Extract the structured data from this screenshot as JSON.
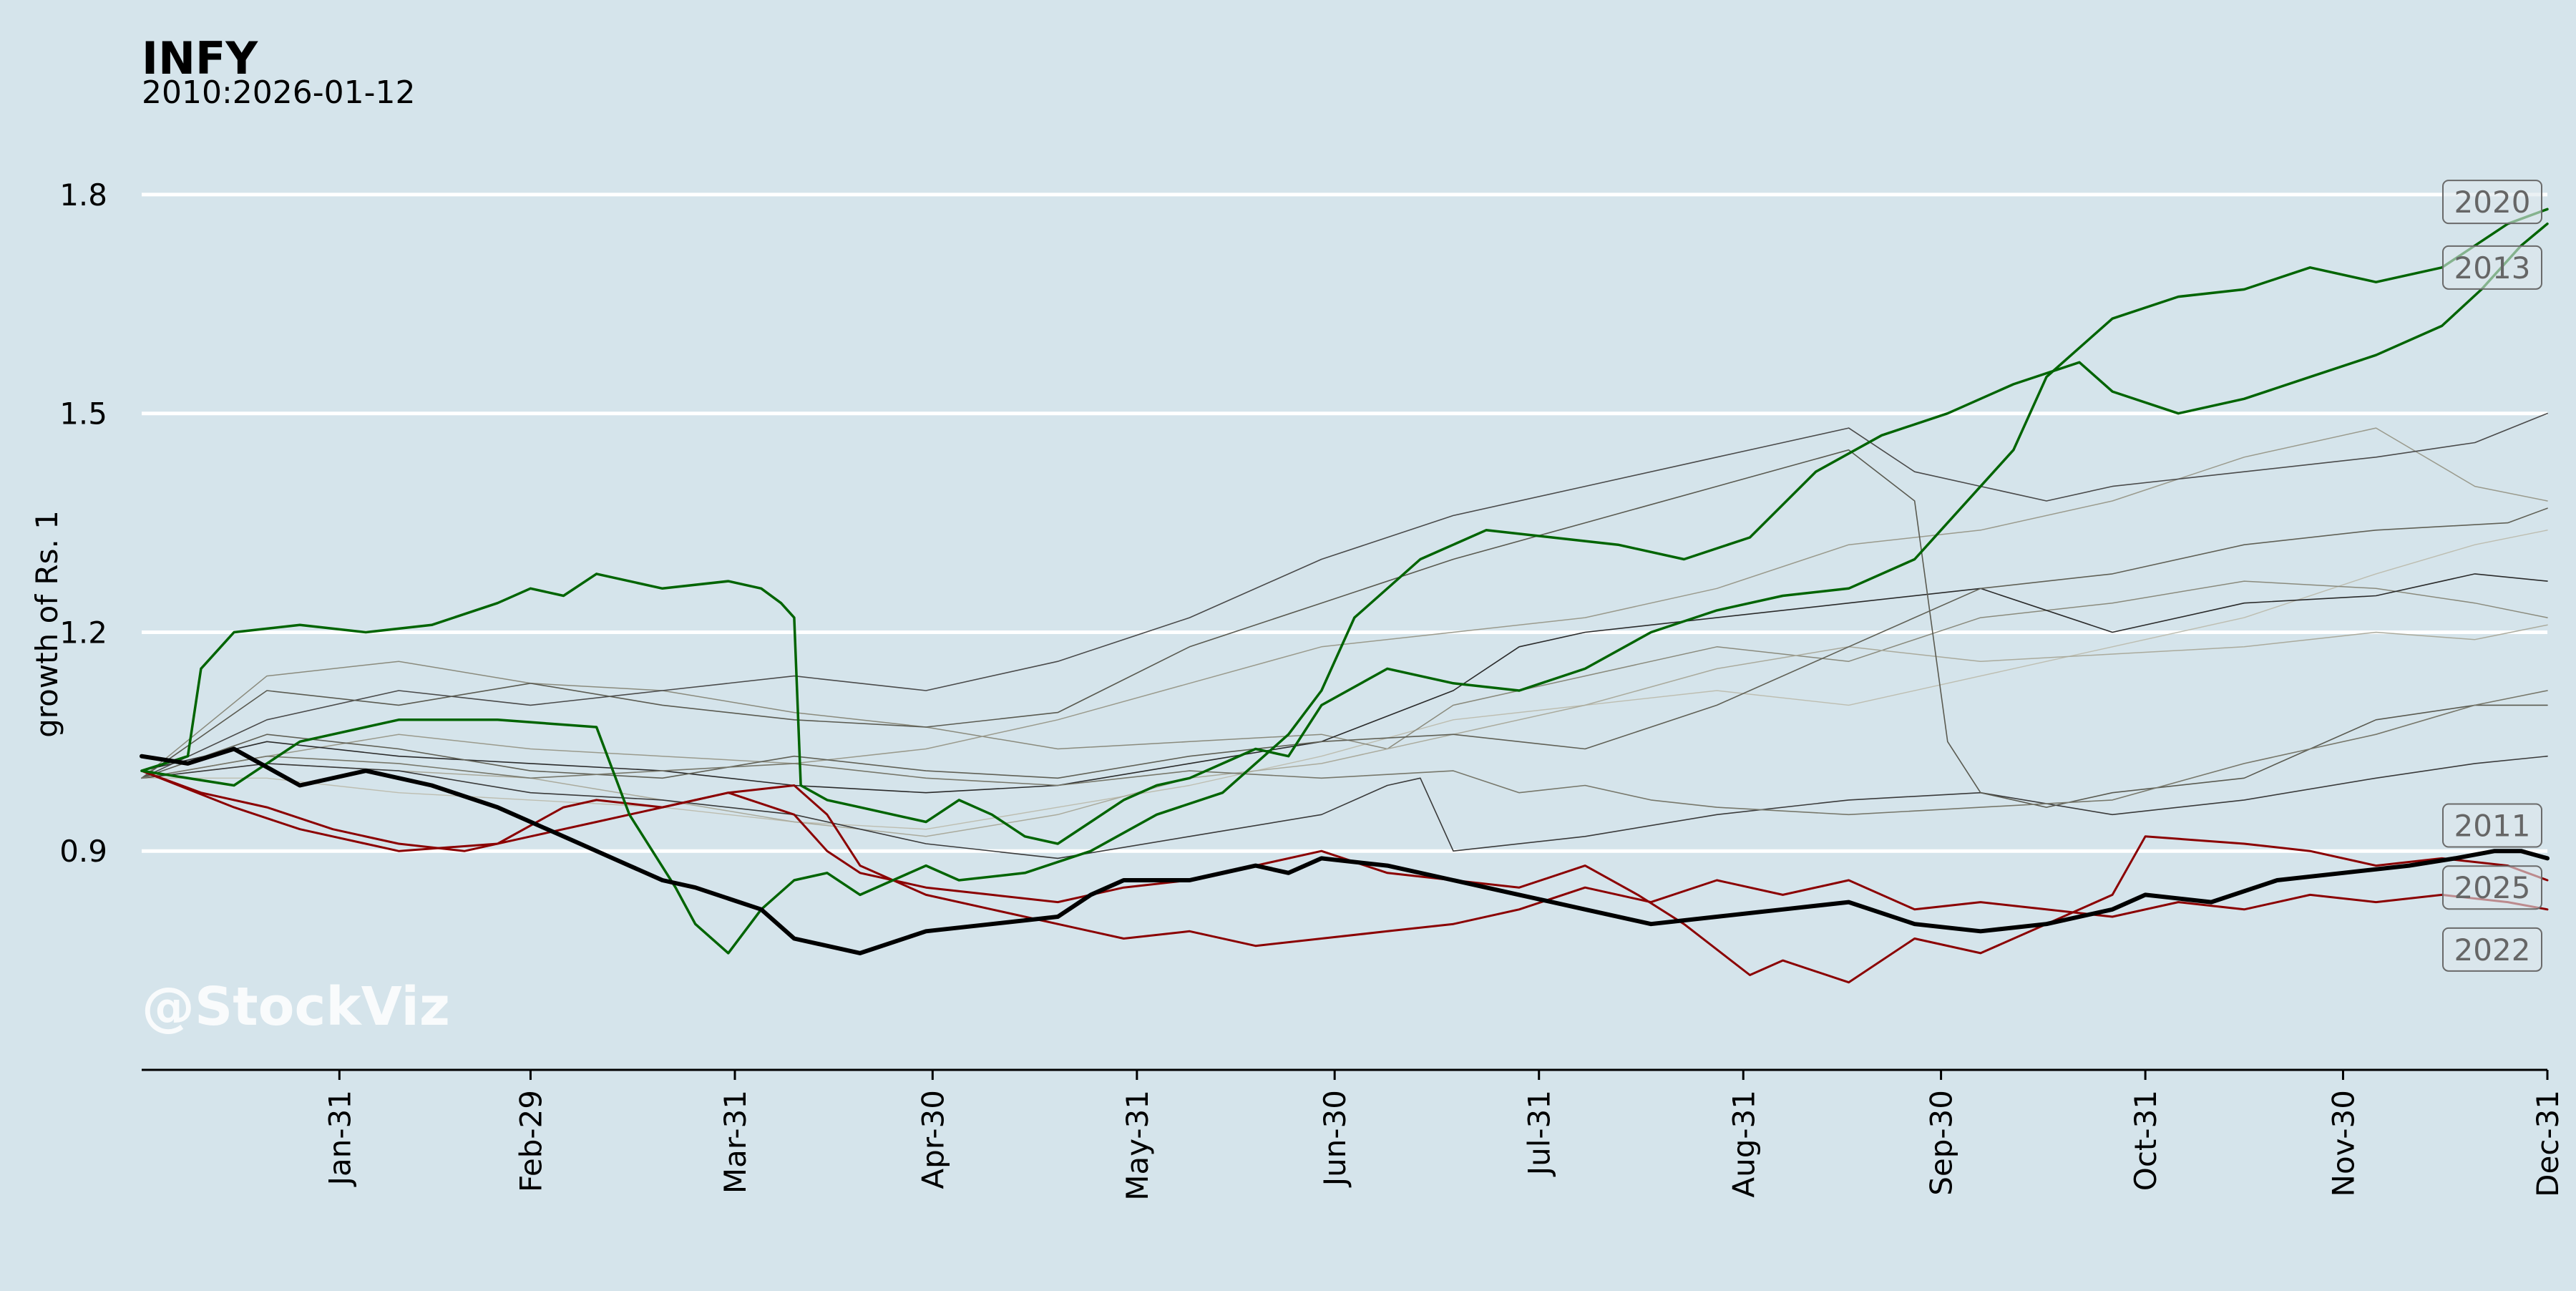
{
  "chart_data": {
    "type": "line",
    "title": "INFY",
    "subtitle": "2010:2026-01-12",
    "ylabel": "growth of Rs. 1",
    "xlabel": "",
    "watermark": "@StockViz",
    "ylim": [
      0.6,
      1.9
    ],
    "xlim": [
      1,
      366
    ],
    "yticks": [
      0.9,
      1.2,
      1.5,
      1.8
    ],
    "ytick_labels": [
      "0.9",
      "1.2",
      "1.5",
      "1.8"
    ],
    "xticks": [
      31,
      60,
      91,
      121,
      152,
      182,
      213,
      244,
      274,
      305,
      335,
      366
    ],
    "xtick_labels": [
      "Jan-31",
      "Feb-29",
      "Mar-31",
      "Apr-30",
      "May-31",
      "Jun-30",
      "Jul-31",
      "Aug-31",
      "Sep-30",
      "Oct-31",
      "Nov-30",
      "Dec-31"
    ],
    "grid": "horizontal",
    "colors": {
      "background": "#d5e4eb",
      "grid": "#ffffff",
      "up_highlight": "#006400",
      "down_highlight": "#8b0000",
      "current": "#000000"
    },
    "series": [
      {
        "name": "2020",
        "label": "2020",
        "color": "#006400",
        "width": 3.5,
        "x": [
          1,
          15,
          25,
          40,
          55,
          70,
          75,
          82,
          85,
          90,
          95,
          100,
          105,
          110,
          115,
          120,
          125,
          135,
          145,
          155,
          165,
          170,
          175,
          180,
          185,
          195,
          205,
          215,
          225,
          235,
          245,
          255,
          265,
          275,
          285,
          295,
          300,
          310,
          320,
          330,
          340,
          350,
          356,
          362,
          366
        ],
        "y": [
          1.01,
          0.99,
          1.05,
          1.08,
          1.08,
          1.07,
          0.95,
          0.85,
          0.8,
          0.76,
          0.82,
          0.86,
          0.87,
          0.84,
          0.86,
          0.88,
          0.86,
          0.87,
          0.9,
          0.95,
          0.98,
          1.02,
          1.06,
          1.12,
          1.22,
          1.3,
          1.34,
          1.33,
          1.32,
          1.3,
          1.33,
          1.42,
          1.47,
          1.5,
          1.54,
          1.57,
          1.53,
          1.5,
          1.52,
          1.55,
          1.58,
          1.62,
          1.67,
          1.73,
          1.76
        ]
      },
      {
        "name": "2013",
        "label": "2013",
        "color": "#006400",
        "width": 3.5,
        "x": [
          1,
          8,
          10,
          15,
          25,
          35,
          45,
          55,
          60,
          65,
          70,
          80,
          90,
          95,
          98,
          100,
          101,
          105,
          110,
          115,
          120,
          125,
          130,
          135,
          140,
          145,
          150,
          155,
          160,
          165,
          170,
          175,
          180,
          190,
          200,
          210,
          220,
          230,
          240,
          250,
          260,
          270,
          280,
          285,
          290,
          300,
          310,
          320,
          330,
          340,
          350,
          360,
          366
        ],
        "y": [
          1.01,
          1.03,
          1.15,
          1.2,
          1.21,
          1.2,
          1.21,
          1.24,
          1.26,
          1.25,
          1.28,
          1.26,
          1.27,
          1.26,
          1.24,
          1.22,
          0.99,
          0.97,
          0.96,
          0.95,
          0.94,
          0.97,
          0.95,
          0.92,
          0.91,
          0.94,
          0.97,
          0.99,
          1.0,
          1.02,
          1.04,
          1.03,
          1.1,
          1.15,
          1.13,
          1.12,
          1.15,
          1.2,
          1.23,
          1.25,
          1.26,
          1.3,
          1.4,
          1.45,
          1.55,
          1.63,
          1.66,
          1.67,
          1.7,
          1.68,
          1.7,
          1.76,
          1.78
        ]
      },
      {
        "name": "2011",
        "label": "2011",
        "color": "#8b0000",
        "width": 3,
        "x": [
          1,
          15,
          25,
          40,
          55,
          65,
          70,
          80,
          90,
          100,
          105,
          110,
          120,
          130,
          140,
          150,
          160,
          170,
          180,
          190,
          200,
          210,
          220,
          228,
          235,
          245,
          250,
          260,
          270,
          280,
          290,
          300,
          305,
          320,
          330,
          340,
          350,
          360,
          366
        ],
        "y": [
          1.01,
          0.96,
          0.93,
          0.9,
          0.91,
          0.96,
          0.97,
          0.96,
          0.98,
          0.95,
          0.9,
          0.87,
          0.85,
          0.84,
          0.83,
          0.85,
          0.86,
          0.88,
          0.9,
          0.87,
          0.86,
          0.85,
          0.88,
          0.84,
          0.8,
          0.73,
          0.75,
          0.72,
          0.78,
          0.76,
          0.8,
          0.84,
          0.92,
          0.91,
          0.9,
          0.88,
          0.89,
          0.88,
          0.86
        ]
      },
      {
        "name": "2022",
        "label": "2022",
        "color": "#8b0000",
        "width": 3,
        "x": [
          1,
          10,
          20,
          30,
          40,
          50,
          60,
          70,
          80,
          90,
          100,
          105,
          110,
          120,
          130,
          140,
          150,
          160,
          170,
          180,
          190,
          200,
          210,
          220,
          230,
          240,
          250,
          260,
          270,
          280,
          290,
          300,
          310,
          320,
          330,
          340,
          350,
          360,
          366
        ],
        "y": [
          1.01,
          0.98,
          0.96,
          0.93,
          0.91,
          0.9,
          0.92,
          0.94,
          0.96,
          0.98,
          0.99,
          0.95,
          0.88,
          0.84,
          0.82,
          0.8,
          0.78,
          0.79,
          0.77,
          0.78,
          0.79,
          0.8,
          0.82,
          0.85,
          0.83,
          0.86,
          0.84,
          0.86,
          0.82,
          0.83,
          0.82,
          0.81,
          0.83,
          0.82,
          0.84,
          0.83,
          0.84,
          0.83,
          0.82
        ]
      },
      {
        "name": "2025",
        "label": "2025",
        "color": "#000000",
        "width": 6,
        "x": [
          1,
          8,
          15,
          25,
          35,
          45,
          55,
          65,
          75,
          80,
          85,
          95,
          100,
          110,
          120,
          130,
          140,
          145,
          150,
          160,
          170,
          175,
          180,
          190,
          200,
          210,
          220,
          230,
          240,
          250,
          260,
          270,
          280,
          290,
          300,
          305,
          315,
          325,
          335,
          345,
          352,
          358,
          362,
          366
        ],
        "y": [
          1.03,
          1.02,
          1.04,
          0.99,
          1.01,
          0.99,
          0.96,
          0.92,
          0.88,
          0.86,
          0.85,
          0.82,
          0.78,
          0.76,
          0.79,
          0.8,
          0.81,
          0.84,
          0.86,
          0.86,
          0.88,
          0.87,
          0.89,
          0.88,
          0.86,
          0.84,
          0.82,
          0.8,
          0.81,
          0.82,
          0.83,
          0.8,
          0.79,
          0.8,
          0.82,
          0.84,
          0.83,
          0.86,
          0.87,
          0.88,
          0.89,
          0.9,
          0.9,
          0.89
        ]
      },
      {
        "name": "gray-1",
        "color": "#2a2a2a",
        "width": 1.6,
        "x": [
          1,
          20,
          40,
          60,
          80,
          100,
          120,
          140,
          160,
          180,
          200,
          210,
          220,
          240,
          260,
          280,
          300,
          320,
          340,
          355,
          366
        ],
        "y": [
          1.01,
          1.05,
          1.03,
          1.02,
          1.01,
          0.99,
          0.98,
          0.99,
          1.02,
          1.05,
          1.12,
          1.18,
          1.2,
          1.22,
          1.24,
          1.26,
          1.2,
          1.24,
          1.25,
          1.28,
          1.27
        ]
      },
      {
        "name": "gray-2",
        "color": "#3a3a3a",
        "width": 1.6,
        "x": [
          1,
          20,
          40,
          60,
          80,
          100,
          120,
          140,
          160,
          180,
          190,
          195,
          200,
          220,
          240,
          260,
          280,
          300,
          320,
          340,
          355,
          366
        ],
        "y": [
          1.0,
          1.02,
          1.01,
          0.98,
          0.97,
          0.95,
          0.91,
          0.89,
          0.92,
          0.95,
          0.99,
          1.0,
          0.9,
          0.92,
          0.95,
          0.97,
          0.98,
          0.95,
          0.97,
          1.0,
          1.02,
          1.03
        ]
      },
      {
        "name": "gray-3",
        "color": "#4a4a4a",
        "width": 1.6,
        "x": [
          1,
          20,
          40,
          60,
          80,
          100,
          120,
          140,
          160,
          180,
          200,
          220,
          240,
          250,
          260,
          270,
          280,
          290,
          300,
          320,
          340,
          355,
          366
        ],
        "y": [
          1.0,
          1.08,
          1.12,
          1.1,
          1.12,
          1.14,
          1.12,
          1.16,
          1.22,
          1.3,
          1.36,
          1.4,
          1.44,
          1.46,
          1.48,
          1.42,
          1.4,
          1.38,
          1.4,
          1.42,
          1.44,
          1.46,
          1.5
        ]
      },
      {
        "name": "gray-4",
        "color": "#5a5a50",
        "width": 1.6,
        "x": [
          1,
          20,
          40,
          60,
          80,
          100,
          120,
          140,
          160,
          180,
          200,
          220,
          240,
          260,
          270,
          275,
          280,
          290,
          300,
          320,
          340,
          355,
          366
        ],
        "y": [
          1.0,
          1.12,
          1.1,
          1.13,
          1.1,
          1.08,
          1.07,
          1.09,
          1.18,
          1.24,
          1.3,
          1.35,
          1.4,
          1.45,
          1.38,
          1.05,
          0.98,
          0.96,
          0.98,
          1.0,
          1.08,
          1.1,
          1.1
        ]
      },
      {
        "name": "gray-5",
        "color": "#606055",
        "width": 1.6,
        "x": [
          1,
          20,
          40,
          60,
          80,
          100,
          120,
          140,
          160,
          180,
          200,
          220,
          240,
          260,
          280,
          300,
          320,
          340,
          360,
          366
        ],
        "y": [
          1.0,
          1.06,
          1.04,
          1.01,
          1.0,
          1.03,
          1.01,
          1.0,
          1.03,
          1.05,
          1.06,
          1.04,
          1.1,
          1.18,
          1.26,
          1.28,
          1.32,
          1.34,
          1.35,
          1.37
        ]
      },
      {
        "name": "gray-6",
        "color": "#77776a",
        "width": 1.6,
        "x": [
          1,
          20,
          40,
          60,
          80,
          100,
          120,
          140,
          160,
          180,
          200,
          210,
          220,
          230,
          240,
          260,
          280,
          300,
          320,
          340,
          355,
          366
        ],
        "y": [
          1.0,
          1.03,
          1.02,
          1.0,
          1.01,
          1.02,
          1.0,
          0.99,
          1.01,
          1.0,
          1.01,
          0.98,
          0.99,
          0.97,
          0.96,
          0.95,
          0.96,
          0.97,
          1.02,
          1.06,
          1.1,
          1.12
        ]
      },
      {
        "name": "gray-7",
        "color": "#8a8a7c",
        "width": 1.5,
        "x": [
          1,
          20,
          40,
          60,
          80,
          100,
          120,
          140,
          160,
          180,
          190,
          200,
          220,
          240,
          260,
          280,
          300,
          320,
          340,
          355,
          366
        ],
        "y": [
          1.0,
          1.14,
          1.16,
          1.13,
          1.12,
          1.09,
          1.07,
          1.04,
          1.05,
          1.06,
          1.04,
          1.1,
          1.14,
          1.18,
          1.16,
          1.22,
          1.24,
          1.27,
          1.26,
          1.24,
          1.22
        ]
      },
      {
        "name": "gray-8",
        "color": "#9a9a8c",
        "width": 1.5,
        "x": [
          1,
          20,
          40,
          60,
          80,
          100,
          120,
          140,
          160,
          180,
          200,
          220,
          240,
          260,
          280,
          300,
          320,
          340,
          355,
          366
        ],
        "y": [
          1.0,
          1.03,
          1.06,
          1.04,
          1.03,
          1.02,
          1.04,
          1.08,
          1.13,
          1.18,
          1.2,
          1.22,
          1.26,
          1.32,
          1.34,
          1.38,
          1.44,
          1.48,
          1.4,
          1.38
        ]
      },
      {
        "name": "gray-9",
        "color": "#aaaa9c",
        "width": 1.5,
        "x": [
          1,
          20,
          40,
          60,
          80,
          100,
          120,
          140,
          160,
          180,
          200,
          220,
          240,
          260,
          280,
          300,
          320,
          340,
          355,
          366
        ],
        "y": [
          1.0,
          1.02,
          1.01,
          1.0,
          0.97,
          0.94,
          0.92,
          0.95,
          1.0,
          1.02,
          1.06,
          1.1,
          1.15,
          1.18,
          1.16,
          1.17,
          1.18,
          1.2,
          1.19,
          1.21
        ]
      },
      {
        "name": "gray-10",
        "color": "#bdbdb0",
        "width": 1.4,
        "x": [
          1,
          20,
          40,
          60,
          80,
          100,
          120,
          140,
          160,
          180,
          200,
          220,
          240,
          260,
          280,
          300,
          320,
          340,
          355,
          366
        ],
        "y": [
          1.0,
          1.0,
          0.98,
          0.97,
          0.96,
          0.94,
          0.93,
          0.96,
          0.99,
          1.03,
          1.08,
          1.1,
          1.12,
          1.1,
          1.14,
          1.18,
          1.22,
          1.28,
          1.32,
          1.34
        ]
      }
    ],
    "end_labels": [
      {
        "text": "2020",
        "y": 1.79,
        "series": "2020"
      },
      {
        "text": "2013",
        "y": 1.7,
        "series": "2013"
      },
      {
        "text": "2011",
        "y": 0.935,
        "series": "2011"
      },
      {
        "text": "2025",
        "y": 0.85,
        "series": "2025"
      },
      {
        "text": "2022",
        "y": 0.765,
        "series": "2022"
      }
    ]
  }
}
